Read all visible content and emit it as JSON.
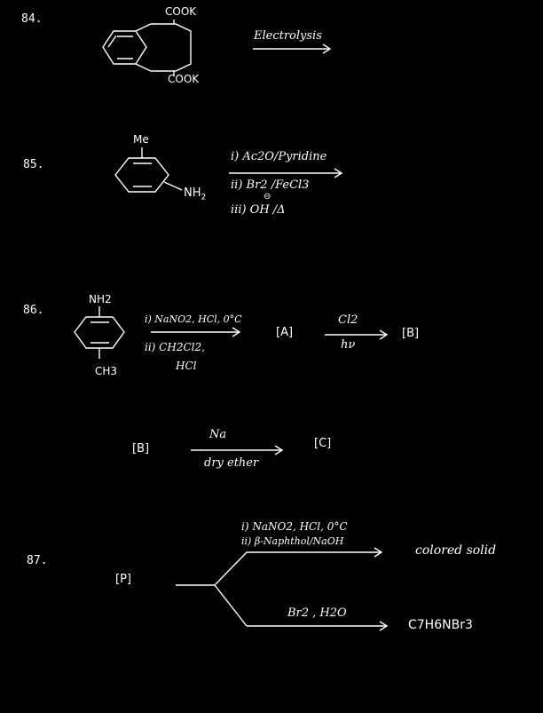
{
  "q84": {
    "number": "84.",
    "top_group": "COOK",
    "bottom_group": "COOK",
    "reagent": "Electrolysis"
  },
  "q85": {
    "number": "85.",
    "substituent_top": "Me",
    "substituent_amine": "NH",
    "amine_subscript": "2",
    "step1": "i) Ac2O/Pyridine",
    "step2": "ii) Br2 /FeCl3",
    "step3": "iii) OH /Δ",
    "charge": "⊖"
  },
  "q86": {
    "number": "86.",
    "top_group": "NH2",
    "bottom_group": "CH3",
    "step1": "i) NaNO2, HCl, 0°C",
    "step2": "ii) CH2Cl2,",
    "step2b": "HCl",
    "intermediate_a": "[A]",
    "reagent_a_top": "Cl2",
    "reagent_a_bottom": "hν",
    "intermediate_b": "[B]",
    "b_label": "[B]",
    "reagent_b_top": "Na",
    "reagent_b_bottom": "dry ether",
    "product_c": "[C]"
  },
  "q87": {
    "number": "87.",
    "start": "[P]",
    "upper_step1": "i) NaNO2, HCl, 0°C",
    "upper_step2": "ii) β-Naphthol/NaOH",
    "upper_product": "colored solid",
    "lower_reagent": "Br2 , H2O",
    "lower_product": "C7H6NBr3"
  }
}
